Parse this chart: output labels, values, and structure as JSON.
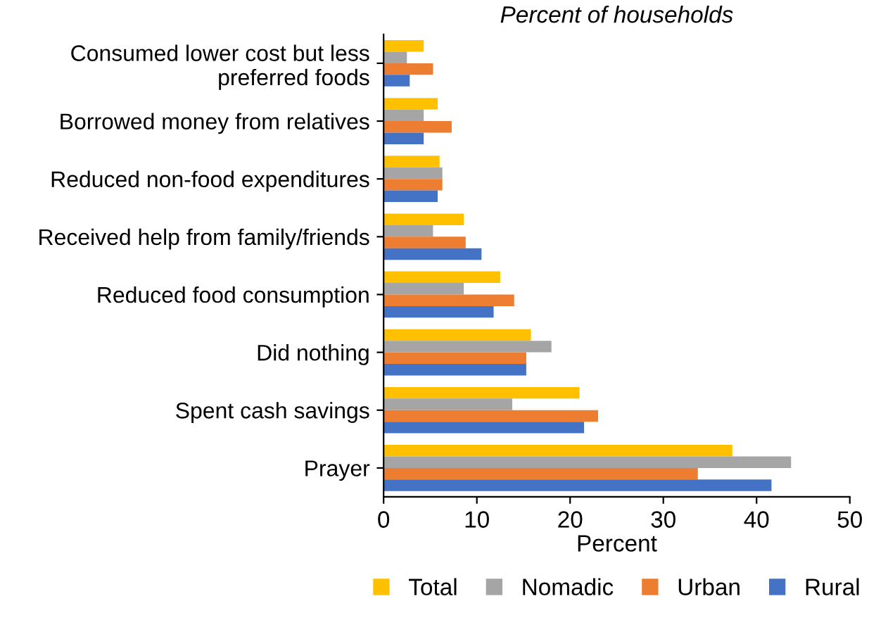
{
  "chart_data": {
    "type": "bar",
    "orientation": "horizontal",
    "title": "Percent of households",
    "xlabel": "Percent",
    "categories": [
      "Consumed lower cost but less preferred foods",
      "Borrowed money from relatives",
      "Reduced non-food expenditures",
      "Received help from family/friends",
      "Reduced food consumption",
      "Did nothing",
      "Spent cash savings",
      "Prayer"
    ],
    "series": [
      {
        "name": "Total",
        "color": "#ffc000",
        "values": [
          4.3,
          5.8,
          6.0,
          8.6,
          12.5,
          15.8,
          21.0,
          37.4
        ]
      },
      {
        "name": "Nomadic",
        "color": "#a5a5a5",
        "values": [
          2.5,
          4.3,
          6.3,
          5.3,
          8.6,
          18.0,
          13.8,
          43.7
        ]
      },
      {
        "name": "Urban",
        "color": "#ed7d31",
        "values": [
          5.3,
          7.3,
          6.3,
          8.8,
          14.0,
          15.3,
          23.0,
          33.7
        ]
      },
      {
        "name": "Rural",
        "color": "#4472c4",
        "values": [
          2.8,
          4.3,
          5.8,
          10.5,
          11.8,
          15.3,
          21.5,
          41.6
        ]
      }
    ],
    "xlim": [
      0,
      50
    ],
    "xticks": [
      0,
      10,
      20,
      30,
      40,
      50
    ],
    "legend": "bottom",
    "grid": false
  }
}
